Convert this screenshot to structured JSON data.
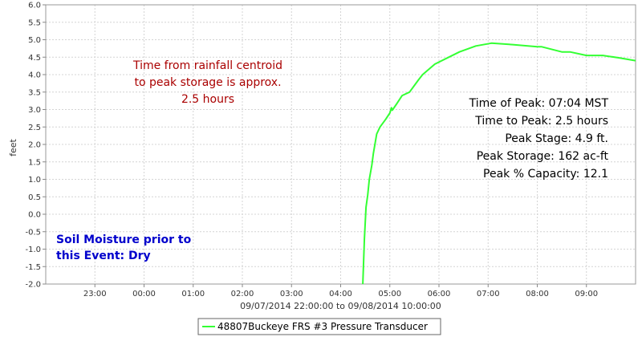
{
  "chart_data": {
    "type": "line",
    "title": "",
    "xlabel": "09/07/2014 22:00:00 to 09/08/2014 10:00:00",
    "ylabel": "feet",
    "ylim": [
      -2.0,
      6.0
    ],
    "yticks": [
      "-2.0",
      "-1.5",
      "-1.0",
      "-0.5",
      "0.0",
      "0.5",
      "1.0",
      "1.5",
      "2.0",
      "2.5",
      "3.0",
      "3.5",
      "4.0",
      "4.5",
      "5.0",
      "5.5",
      "6.0"
    ],
    "xlim": [
      "2014-09-07 22:00",
      "2014-09-08 10:00"
    ],
    "xticks": [
      {
        "time": "2014-09-07 23:00",
        "label": "23:00"
      },
      {
        "time": "2014-09-08 00:00",
        "label": "00:00"
      },
      {
        "time": "2014-09-08 01:00",
        "label": "01:00"
      },
      {
        "time": "2014-09-08 02:00",
        "label": "02:00"
      },
      {
        "time": "2014-09-08 03:00",
        "label": "03:00"
      },
      {
        "time": "2014-09-08 04:00",
        "label": "04:00"
      },
      {
        "time": "2014-09-08 05:00",
        "label": "05:00"
      },
      {
        "time": "2014-09-08 06:00",
        "label": "06:00"
      },
      {
        "time": "2014-09-08 07:00",
        "label": "07:00"
      },
      {
        "time": "2014-09-08 08:00",
        "label": "08:00"
      },
      {
        "time": "2014-09-08 09:00",
        "label": "09:00"
      }
    ],
    "grid": true,
    "legend_position": "bottom-center",
    "series": [
      {
        "name": "48807Buckeye FRS #3 Pressure Transducer",
        "color": "#33ff33",
        "points": [
          [
            "2014-09-08 04:27",
            -2.0
          ],
          [
            "2014-09-08 04:29",
            -0.7
          ],
          [
            "2014-09-08 04:31",
            0.2
          ],
          [
            "2014-09-08 04:33",
            0.55
          ],
          [
            "2014-09-08 04:35",
            1.0
          ],
          [
            "2014-09-08 04:38",
            1.4
          ],
          [
            "2014-09-08 04:40",
            1.75
          ],
          [
            "2014-09-08 04:44",
            2.3
          ],
          [
            "2014-09-08 04:48",
            2.5
          ],
          [
            "2014-09-08 04:55",
            2.72
          ],
          [
            "2014-09-08 05:00",
            2.9
          ],
          [
            "2014-09-08 05:02",
            3.05
          ],
          [
            "2014-09-08 05:03",
            2.98
          ],
          [
            "2014-09-08 05:08",
            3.15
          ],
          [
            "2014-09-08 05:15",
            3.4
          ],
          [
            "2014-09-08 05:24",
            3.5
          ],
          [
            "2014-09-08 05:35",
            3.85
          ],
          [
            "2014-09-08 05:40",
            4.0
          ],
          [
            "2014-09-08 05:55",
            4.3
          ],
          [
            "2014-09-08 06:25",
            4.65
          ],
          [
            "2014-09-08 06:45",
            4.82
          ],
          [
            "2014-09-08 07:04",
            4.9
          ],
          [
            "2014-09-08 07:30",
            4.86
          ],
          [
            "2014-09-08 08:00",
            4.8
          ],
          [
            "2014-09-08 08:05",
            4.8
          ],
          [
            "2014-09-08 08:30",
            4.65
          ],
          [
            "2014-09-08 08:40",
            4.65
          ],
          [
            "2014-09-08 09:00",
            4.55
          ],
          [
            "2014-09-08 09:20",
            4.55
          ],
          [
            "2014-09-08 09:40",
            4.48
          ],
          [
            "2014-09-08 10:00",
            4.4
          ]
        ]
      }
    ],
    "annotations": {
      "centroid": {
        "color": "#aa0000",
        "lines": [
          "Time from rainfall centroid",
          "to peak storage is approx.",
          "2.5 hours"
        ]
      },
      "peak_info": {
        "color": "#000000",
        "lines": [
          "Time of Peak: 07:04 MST",
          "Time to Peak: 2.5 hours",
          "Peak Stage: 4.9 ft.",
          "Peak Storage: 162 ac-ft",
          "Peak % Capacity: 12.1"
        ]
      },
      "soil": {
        "color": "#0000cc",
        "lines": [
          "Soil Moisture prior to",
          "this Event: Dry"
        ]
      }
    }
  }
}
